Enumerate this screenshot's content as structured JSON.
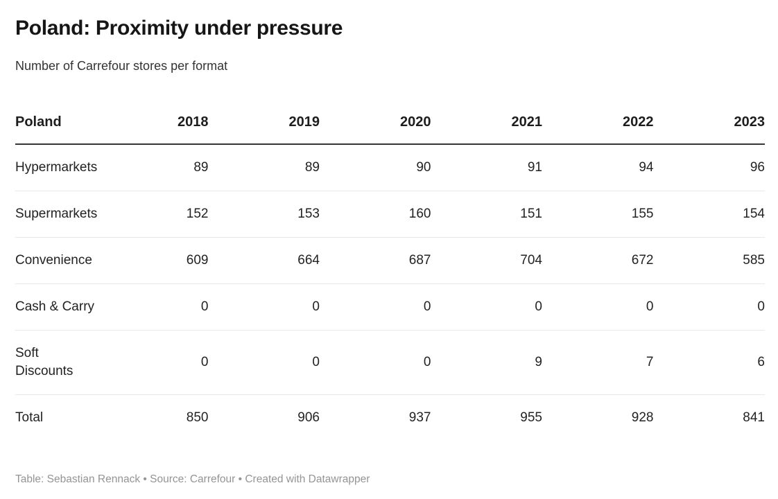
{
  "header": {
    "title": "Poland: Proximity under pressure",
    "subtitle": "Number of Carrefour stores per format"
  },
  "table": {
    "label_header": "Poland",
    "year_headers": [
      "2018",
      "2019",
      "2020",
      "2021",
      "2022",
      "2023"
    ],
    "rows": [
      {
        "label": "Hypermarkets",
        "values": [
          "89",
          "89",
          "90",
          "91",
          "94",
          "96"
        ]
      },
      {
        "label": "Supermarkets",
        "values": [
          "152",
          "153",
          "160",
          "151",
          "155",
          "154"
        ]
      },
      {
        "label": "Convenience",
        "values": [
          "609",
          "664",
          "687",
          "704",
          "672",
          "585"
        ]
      },
      {
        "label": "Cash & Carry",
        "values": [
          "0",
          "0",
          "0",
          "0",
          "0",
          "0"
        ]
      },
      {
        "label": "Soft Discounts",
        "values": [
          "0",
          "0",
          "0",
          "9",
          "7",
          "6"
        ]
      },
      {
        "label": "Total",
        "values": [
          "850",
          "906",
          "937",
          "955",
          "928",
          "841"
        ]
      }
    ]
  },
  "footer": {
    "text": "Table: Sebastian Rennack • Source: Carrefour • Created with Datawrapper"
  },
  "colors": {
    "background": "#ffffff",
    "title_text": "#161616",
    "body_text": "#222222",
    "header_rule": "#343434",
    "row_divider": "#e8e8e8",
    "footer_text": "#949494"
  },
  "chart_data": {
    "type": "table",
    "title": "Poland: Proximity under pressure",
    "subtitle": "Number of Carrefour stores per format",
    "categories": [
      "2018",
      "2019",
      "2020",
      "2021",
      "2022",
      "2023"
    ],
    "series": [
      {
        "name": "Hypermarkets",
        "values": [
          89,
          89,
          90,
          91,
          94,
          96
        ]
      },
      {
        "name": "Supermarkets",
        "values": [
          152,
          153,
          160,
          151,
          155,
          154
        ]
      },
      {
        "name": "Convenience",
        "values": [
          609,
          664,
          687,
          704,
          672,
          585
        ]
      },
      {
        "name": "Cash & Carry",
        "values": [
          0,
          0,
          0,
          0,
          0,
          0
        ]
      },
      {
        "name": "Soft Discounts",
        "values": [
          0,
          0,
          0,
          9,
          7,
          6
        ]
      },
      {
        "name": "Total",
        "values": [
          850,
          906,
          937,
          955,
          928,
          841
        ]
      }
    ],
    "credit": "Table: Sebastian Rennack • Source: Carrefour • Created with Datawrapper"
  }
}
